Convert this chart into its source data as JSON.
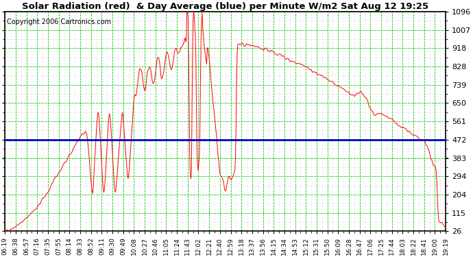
{
  "title": "Solar Radiation (red)  & Day Average (blue) per Minute W/m2 Sat Aug 12 19:25",
  "copyright": "Copyright 2006 Cartronics.com",
  "ymin": 26.0,
  "ymax": 1096.0,
  "yticks": [
    26.0,
    115.2,
    204.3,
    293.5,
    382.7,
    471.8,
    561.0,
    650.2,
    739.3,
    828.5,
    917.7,
    1006.8,
    1096.0
  ],
  "day_average": 471.8,
  "bg_color": "#ffffff",
  "plot_bg_color": "#ffffff",
  "grid_major_color": "#00cc00",
  "grid_minor_color": "#c0c0c0",
  "line_color": "#ff0000",
  "avg_color": "#0000cc",
  "title_color": "#000000",
  "copyright_color": "#000000",
  "x_labels": [
    "06:19",
    "06:38",
    "06:57",
    "07:16",
    "07:35",
    "07:55",
    "08:14",
    "08:33",
    "08:52",
    "09:11",
    "09:30",
    "09:49",
    "10:08",
    "10:27",
    "10:46",
    "11:05",
    "11:24",
    "11:43",
    "12:02",
    "12:21",
    "12:40",
    "12:59",
    "13:18",
    "13:37",
    "13:56",
    "14:15",
    "14:34",
    "14:53",
    "15:12",
    "15:31",
    "15:50",
    "16:09",
    "16:28",
    "16:47",
    "17:06",
    "17:25",
    "17:44",
    "18:03",
    "18:22",
    "18:41",
    "19:00",
    "19:19"
  ]
}
